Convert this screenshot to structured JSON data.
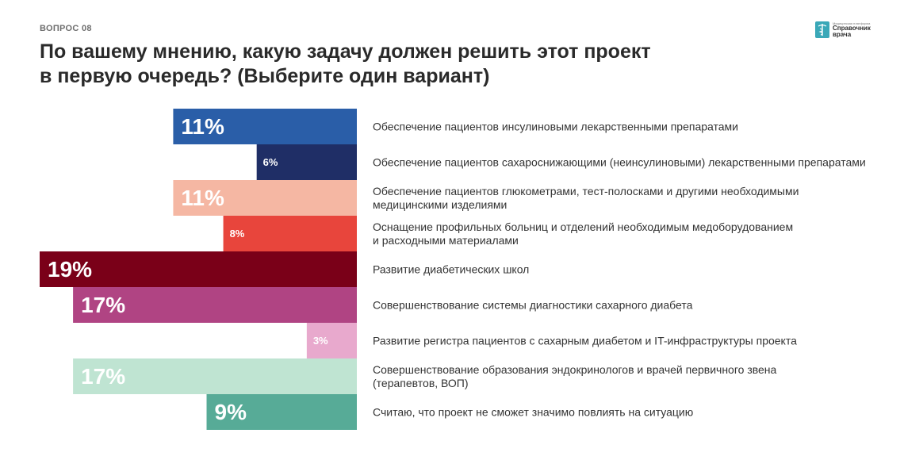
{
  "question_label": "ВОПРОС 08",
  "title_line1": "По вашему мнению, какую задачу должен решить этот проект",
  "title_line2": "в первую очередь? (Выберите один вариант)",
  "logo": {
    "small": "Медицинская платформа",
    "line1": "Справочник",
    "line2": "врача",
    "icon": "caduceus-icon",
    "color": "#3aa8b8"
  },
  "chart_data": {
    "type": "bar",
    "orientation": "horizontal",
    "categories": [
      [
        "Обеспечение пациентов инсулиновыми лекарственными препаратами"
      ],
      [
        "Обеспечение пациентов сахароснижающими (неинсулиновыми) лекарственными препаратами"
      ],
      [
        "Обеспечение пациентов глюкометрами, тест-полосками и другими необходимыми",
        "медицинскими изделиями"
      ],
      [
        "Оснащение профильных больниц и отделений необходимым медоборудованием",
        "и расходными материалами"
      ],
      [
        "Развитие диабетических школ"
      ],
      [
        "Совершенствование системы диагностики сахарного диабета"
      ],
      [
        "Развитие регистра пациентов с сахарным диабетом и IT-инфраструктуры проекта"
      ],
      [
        "Совершенствование образования эндокринологов и врачей первичного звена",
        "(терапевтов, ВОП)"
      ],
      [
        "Считаю, что проект не сможет значимо повлиять на ситуацию"
      ]
    ],
    "values": [
      11,
      6,
      11,
      8,
      19,
      17,
      3,
      17,
      9
    ],
    "value_labels": [
      "11%",
      "6%",
      "11%",
      "8%",
      "19%",
      "17%",
      "3%",
      "17%",
      "9%"
    ],
    "colors": [
      "#2a5ea8",
      "#1f2e66",
      "#f5b7a3",
      "#e8453c",
      "#7a0018",
      "#b04483",
      "#e8a9cd",
      "#bfe4d2",
      "#57ab97"
    ],
    "label_colors": [
      "#ffffff",
      "#ffffff",
      "#ffffff",
      "#ffffff",
      "#ffffff",
      "#ffffff",
      "#ffffff",
      "#ffffff",
      "#ffffff"
    ],
    "xlim": [
      0,
      19
    ],
    "grid": false,
    "legend": "none"
  }
}
